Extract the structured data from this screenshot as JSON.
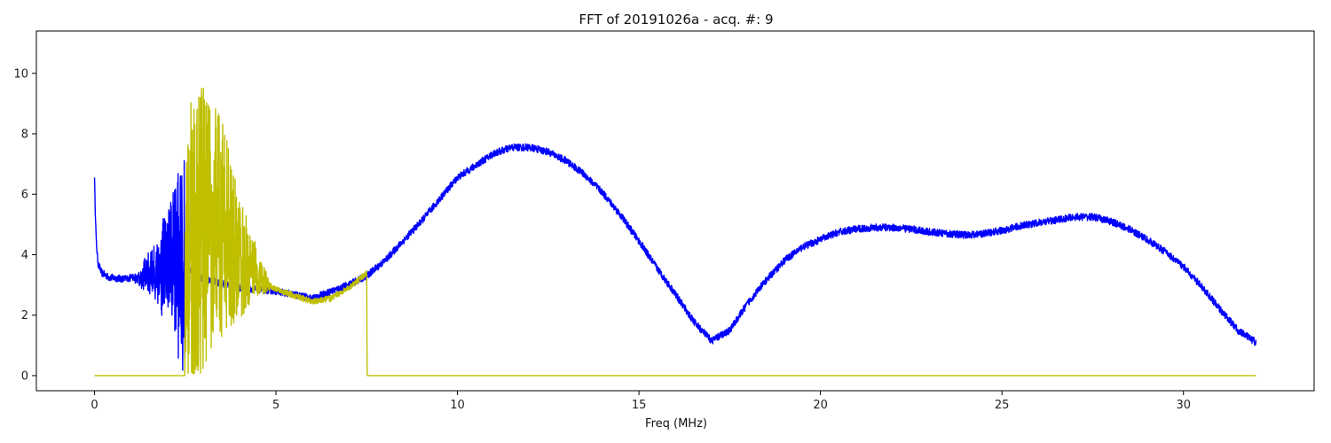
{
  "chart_data": {
    "type": "line",
    "title": "FFT of 20191026a - acq. #: 9",
    "xlabel": "Freq (MHz)",
    "ylabel": "",
    "xlim": [
      -1.6,
      33.6
    ],
    "ylim": [
      -0.5,
      11.4
    ],
    "x_ticks": [
      0,
      5,
      10,
      15,
      20,
      25,
      30
    ],
    "y_ticks": [
      0,
      2,
      4,
      6,
      8,
      10
    ],
    "grid": false,
    "legend": "none",
    "series": [
      {
        "color": "#0000ff",
        "noise": 0.12,
        "points": [
          [
            0.0,
            6.65
          ],
          [
            0.02,
            5.6
          ],
          [
            0.05,
            4.4
          ],
          [
            0.1,
            3.7
          ],
          [
            0.2,
            3.4
          ],
          [
            0.4,
            3.25
          ],
          [
            0.8,
            3.2
          ],
          [
            1.2,
            3.25
          ],
          [
            1.6,
            3.4
          ],
          [
            2.0,
            3.6
          ],
          [
            2.2,
            3.7
          ],
          [
            2.4,
            3.8
          ],
          [
            2.5,
            3.6
          ],
          [
            3.0,
            3.2
          ],
          [
            4.0,
            2.9
          ],
          [
            5.0,
            2.8
          ],
          [
            6.0,
            2.55
          ],
          [
            7.0,
            3.0
          ],
          [
            7.5,
            3.3
          ],
          [
            8.0,
            3.8
          ],
          [
            9.0,
            5.1
          ],
          [
            10.0,
            6.55
          ],
          [
            11.0,
            7.35
          ],
          [
            11.5,
            7.55
          ],
          [
            12.0,
            7.55
          ],
          [
            12.5,
            7.4
          ],
          [
            13.0,
            7.1
          ],
          [
            13.5,
            6.65
          ],
          [
            14.0,
            6.05
          ],
          [
            14.5,
            5.3
          ],
          [
            15.0,
            4.45
          ],
          [
            15.5,
            3.55
          ],
          [
            16.0,
            2.7
          ],
          [
            16.5,
            1.8
          ],
          [
            17.0,
            1.15
          ],
          [
            17.5,
            1.5
          ],
          [
            18.0,
            2.4
          ],
          [
            18.5,
            3.15
          ],
          [
            19.0,
            3.8
          ],
          [
            19.5,
            4.25
          ],
          [
            20.0,
            4.5
          ],
          [
            20.5,
            4.75
          ],
          [
            21.0,
            4.85
          ],
          [
            21.5,
            4.9
          ],
          [
            22.0,
            4.9
          ],
          [
            22.5,
            4.85
          ],
          [
            23.0,
            4.75
          ],
          [
            23.5,
            4.7
          ],
          [
            24.0,
            4.65
          ],
          [
            24.5,
            4.7
          ],
          [
            25.0,
            4.8
          ],
          [
            25.5,
            4.95
          ],
          [
            26.0,
            5.05
          ],
          [
            26.5,
            5.15
          ],
          [
            27.0,
            5.25
          ],
          [
            27.5,
            5.25
          ],
          [
            28.0,
            5.1
          ],
          [
            28.5,
            4.85
          ],
          [
            29.0,
            4.5
          ],
          [
            29.5,
            4.1
          ],
          [
            30.0,
            3.6
          ],
          [
            30.5,
            2.95
          ],
          [
            31.0,
            2.2
          ],
          [
            31.5,
            1.5
          ],
          [
            32.0,
            1.1
          ]
        ],
        "bursts": [
          {
            "from": 0.9,
            "to": 2.5,
            "max_amplitude": 4.0,
            "grow": 1.8
          }
        ]
      },
      {
        "color": "#bfbf00",
        "noise": 0.1,
        "points": [
          [
            0.0,
            0.0
          ],
          [
            2.49,
            0.0
          ],
          [
            2.5,
            3.5
          ],
          [
            3.0,
            4.8
          ],
          [
            3.3,
            5.2
          ],
          [
            3.6,
            4.8
          ],
          [
            4.0,
            4.0
          ],
          [
            4.5,
            3.3
          ],
          [
            5.0,
            2.85
          ],
          [
            5.5,
            2.65
          ],
          [
            6.0,
            2.45
          ],
          [
            6.5,
            2.55
          ],
          [
            7.0,
            2.9
          ],
          [
            7.5,
            3.4
          ],
          [
            7.51,
            0.0
          ],
          [
            32.0,
            0.0
          ]
        ],
        "bursts": [
          {
            "from": 2.5,
            "to": 4.9,
            "max_amplitude": 5.6,
            "grow": 0.35
          }
        ]
      }
    ]
  }
}
